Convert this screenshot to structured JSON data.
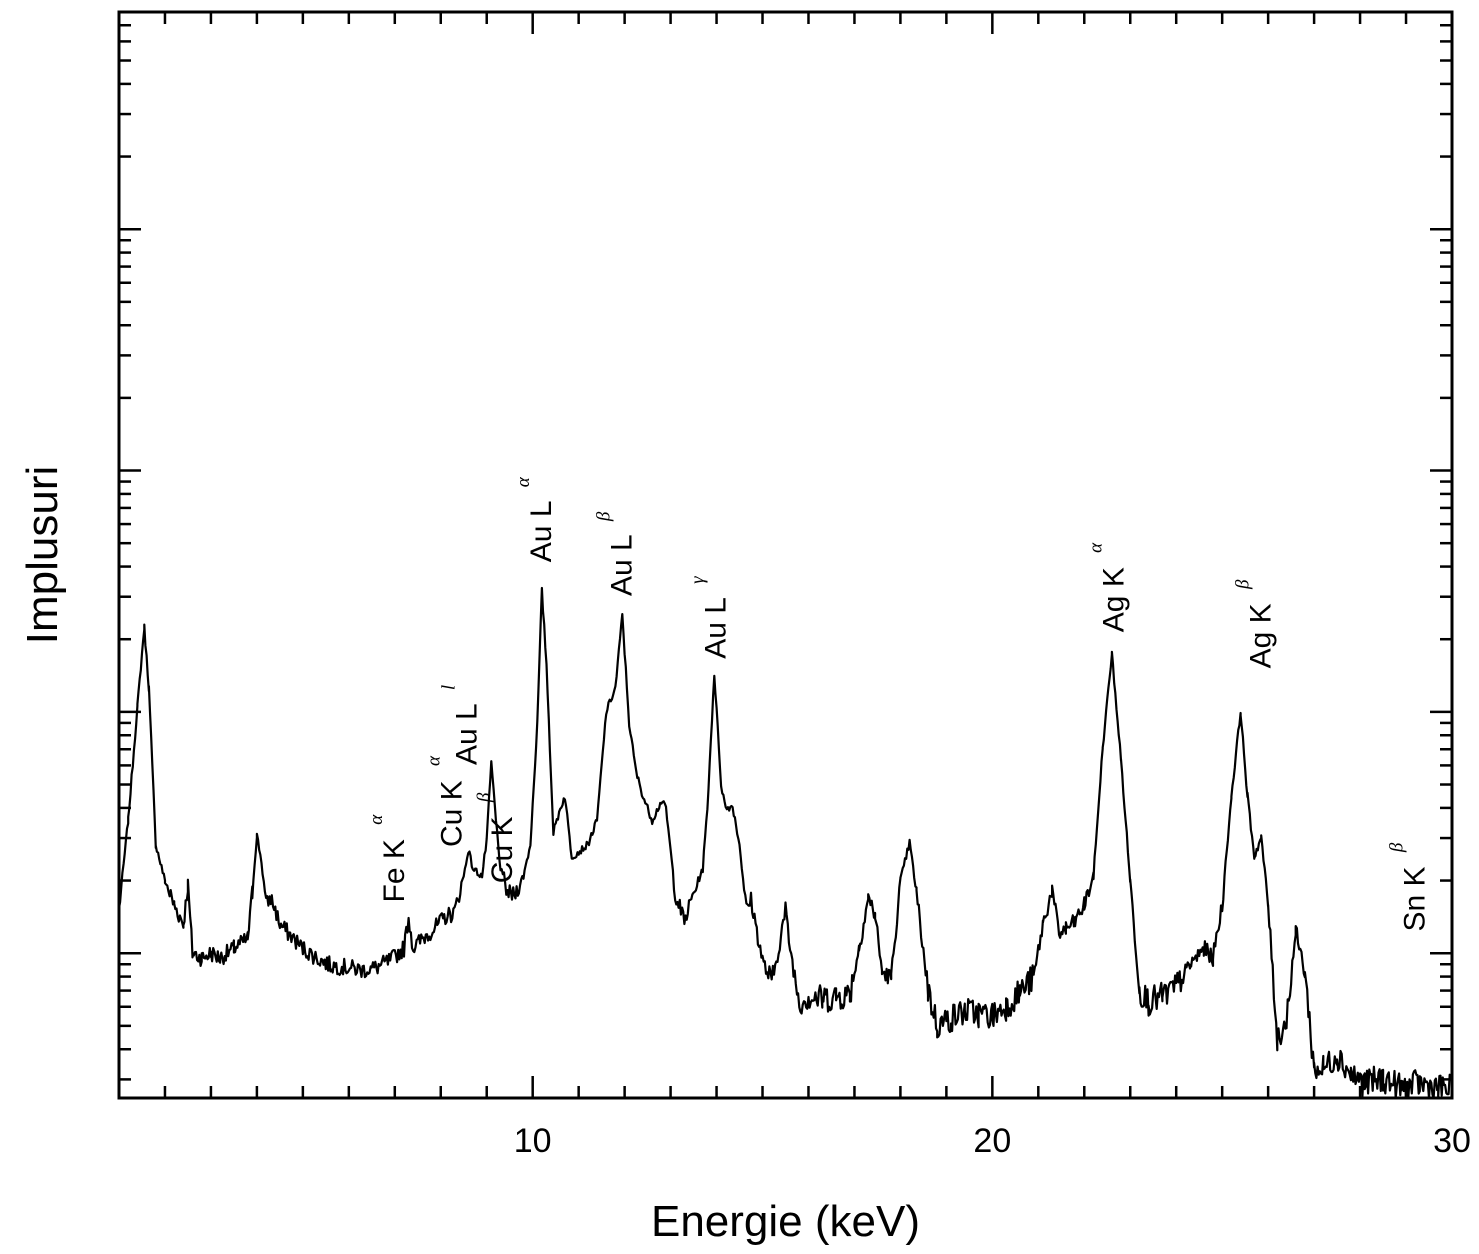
{
  "chart_data": {
    "type": "line",
    "xlabel": "Energie (keV)",
    "ylabel": "Implusuri",
    "xlim": [
      1,
      30
    ],
    "x_ticks": [
      10,
      20,
      30
    ],
    "y_scale": "log",
    "y_decades_visible": 4.5,
    "y_tick_labels_shown": false,
    "series": [
      {
        "points": [
          [
            1.0,
            0.78
          ],
          [
            1.2,
            1.15
          ],
          [
            1.4,
            1.62
          ],
          [
            1.55,
            1.95
          ],
          [
            1.65,
            1.7
          ],
          [
            1.8,
            1.05
          ],
          [
            2.0,
            0.9
          ],
          [
            2.2,
            0.8
          ],
          [
            2.4,
            0.72
          ],
          [
            2.5,
            0.88
          ],
          [
            2.6,
            0.6
          ],
          [
            2.8,
            0.58
          ],
          [
            3.0,
            0.6
          ],
          [
            3.2,
            0.58
          ],
          [
            3.5,
            0.62
          ],
          [
            3.8,
            0.66
          ],
          [
            3.9,
            0.85
          ],
          [
            4.0,
            1.09
          ],
          [
            4.1,
            0.98
          ],
          [
            4.2,
            0.8
          ],
          [
            4.3,
            0.83
          ],
          [
            4.4,
            0.78
          ],
          [
            4.5,
            0.72
          ],
          [
            4.8,
            0.66
          ],
          [
            5.0,
            0.62
          ],
          [
            5.3,
            0.58
          ],
          [
            5.6,
            0.55
          ],
          [
            6.0,
            0.54
          ],
          [
            6.3,
            0.53
          ],
          [
            6.6,
            0.54
          ],
          [
            6.9,
            0.57
          ],
          [
            7.2,
            0.62
          ],
          [
            7.3,
            0.75
          ],
          [
            7.4,
            0.62
          ],
          [
            7.6,
            0.66
          ],
          [
            7.9,
            0.71
          ],
          [
            8.1,
            0.75
          ],
          [
            8.3,
            0.77
          ],
          [
            8.5,
            0.92
          ],
          [
            8.6,
            1.03
          ],
          [
            8.7,
            0.95
          ],
          [
            8.9,
            0.92
          ],
          [
            9.0,
            1.07
          ],
          [
            9.1,
            1.39
          ],
          [
            9.2,
            1.15
          ],
          [
            9.3,
            0.95
          ],
          [
            9.45,
            0.85
          ],
          [
            9.6,
            0.84
          ],
          [
            9.8,
            0.92
          ],
          [
            9.95,
            1.05
          ],
          [
            10.1,
            1.55
          ],
          [
            10.2,
            2.1
          ],
          [
            10.3,
            1.8
          ],
          [
            10.45,
            1.1
          ],
          [
            10.6,
            1.2
          ],
          [
            10.7,
            1.25
          ],
          [
            10.85,
            1.0
          ],
          [
            11.0,
            1.02
          ],
          [
            11.2,
            1.05
          ],
          [
            11.4,
            1.15
          ],
          [
            11.6,
            1.6
          ],
          [
            11.8,
            1.7
          ],
          [
            11.95,
            2.0
          ],
          [
            12.1,
            1.55
          ],
          [
            12.25,
            1.35
          ],
          [
            12.4,
            1.25
          ],
          [
            12.6,
            1.15
          ],
          [
            12.8,
            1.23
          ],
          [
            12.9,
            1.2
          ],
          [
            13.1,
            0.85
          ],
          [
            13.3,
            0.73
          ],
          [
            13.5,
            0.85
          ],
          [
            13.7,
            0.95
          ],
          [
            13.8,
            1.2
          ],
          [
            13.95,
            1.76
          ],
          [
            14.1,
            1.3
          ],
          [
            14.2,
            1.2
          ],
          [
            14.35,
            1.21
          ],
          [
            14.5,
            1.05
          ],
          [
            14.65,
            0.78
          ],
          [
            14.75,
            0.82
          ],
          [
            14.85,
            0.72
          ],
          [
            15.0,
            0.57
          ],
          [
            15.2,
            0.47
          ],
          [
            15.35,
            0.62
          ],
          [
            15.5,
            0.78
          ],
          [
            15.6,
            0.62
          ],
          [
            15.8,
            0.4
          ],
          [
            16.0,
            0.42
          ],
          [
            16.3,
            0.41
          ],
          [
            16.6,
            0.42
          ],
          [
            16.9,
            0.43
          ],
          [
            17.1,
            0.62
          ],
          [
            17.3,
            0.83
          ],
          [
            17.45,
            0.76
          ],
          [
            17.6,
            0.52
          ],
          [
            17.8,
            0.5
          ],
          [
            18.0,
            0.9
          ],
          [
            18.2,
            1.06
          ],
          [
            18.35,
            0.85
          ],
          [
            18.6,
            0.45
          ],
          [
            18.8,
            0.3
          ],
          [
            19.1,
            0.33
          ],
          [
            19.4,
            0.36
          ],
          [
            19.7,
            0.35
          ],
          [
            20.0,
            0.34
          ],
          [
            20.3,
            0.38
          ],
          [
            20.6,
            0.44
          ],
          [
            20.9,
            0.5
          ],
          [
            21.1,
            0.72
          ],
          [
            21.3,
            0.86
          ],
          [
            21.45,
            0.68
          ],
          [
            21.6,
            0.7
          ],
          [
            21.8,
            0.73
          ],
          [
            22.0,
            0.8
          ],
          [
            22.2,
            0.92
          ],
          [
            22.4,
            1.45
          ],
          [
            22.6,
            1.84
          ],
          [
            22.8,
            1.4
          ],
          [
            23.0,
            0.9
          ],
          [
            23.2,
            0.45
          ],
          [
            23.4,
            0.4
          ],
          [
            23.7,
            0.42
          ],
          [
            24.0,
            0.46
          ],
          [
            24.3,
            0.55
          ],
          [
            24.6,
            0.62
          ],
          [
            24.8,
            0.58
          ],
          [
            25.0,
            0.8
          ],
          [
            25.2,
            1.25
          ],
          [
            25.4,
            1.6
          ],
          [
            25.55,
            1.25
          ],
          [
            25.7,
            1.0
          ],
          [
            25.85,
            1.08
          ],
          [
            26.0,
            0.8
          ],
          [
            26.2,
            0.25
          ],
          [
            26.4,
            0.32
          ],
          [
            26.6,
            0.69
          ],
          [
            26.8,
            0.52
          ],
          [
            27.0,
            0.12
          ],
          [
            27.2,
            0.12
          ],
          [
            27.5,
            0.18
          ],
          [
            27.8,
            0.1
          ],
          [
            28.1,
            0.06
          ],
          [
            28.5,
            0.08
          ],
          [
            28.9,
            0.04
          ],
          [
            29.3,
            0.06
          ],
          [
            29.7,
            0.04
          ],
          [
            30.0,
            0.04
          ]
        ]
      }
    ],
    "annotations": [
      {
        "text": "Fe K",
        "sub": "α",
        "x": 7.2,
        "y": 0.81
      },
      {
        "text": "Cu K",
        "sub": "α",
        "x": 8.45,
        "y": 1.04
      },
      {
        "text": "Au L",
        "sub": "l",
        "x": 8.78,
        "y": 1.38
      },
      {
        "text": "Cu K",
        "sub": "β",
        "x": 9.55,
        "y": 0.89
      },
      {
        "text": "Au L",
        "sub": "α",
        "x": 10.4,
        "y": 2.22
      },
      {
        "text": "Au L",
        "sub": "β",
        "x": 12.15,
        "y": 2.08
      },
      {
        "text": "Au L",
        "sub": "γ",
        "x": 14.2,
        "y": 1.82
      },
      {
        "text": "Ag K",
        "sub": "α",
        "x": 22.85,
        "y": 1.93
      },
      {
        "text": "Ag K",
        "sub": "β",
        "x": 26.05,
        "y": 1.78
      },
      {
        "text": "Sn K",
        "sub": "β",
        "x": 29.4,
        "y": 0.69
      }
    ]
  }
}
